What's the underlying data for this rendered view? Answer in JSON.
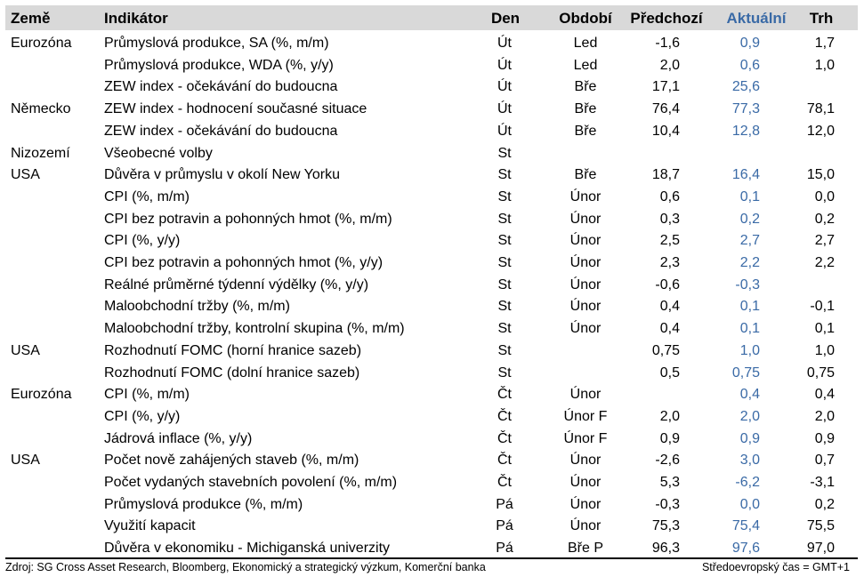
{
  "headers": {
    "country": "Země",
    "indicator": "Indikátor",
    "day": "Den",
    "period": "Období",
    "previous": "Předchozí",
    "actual": "Aktuální",
    "market": "Trh"
  },
  "colors": {
    "header_bg": "#d9d9d9",
    "actual_text": "#3a6aa6"
  },
  "rows": [
    {
      "country": "Eurozóna",
      "indicator": "Průmyslová produkce, SA (%, m/m)",
      "day": "Út",
      "period": "Led",
      "previous": "-1,6",
      "actual": "0,9",
      "market": "1,7"
    },
    {
      "country": "",
      "indicator": "Průmyslová produkce, WDA (%, y/y)",
      "day": "Út",
      "period": "Led",
      "previous": "2,0",
      "actual": "0,6",
      "market": "1,0"
    },
    {
      "country": "",
      "indicator": "ZEW index - očekávání do budoucna",
      "day": "Út",
      "period": "Bře",
      "previous": "17,1",
      "actual": "25,6",
      "market": ""
    },
    {
      "country": "Německo",
      "indicator": "ZEW index - hodnocení současné situace",
      "day": "Út",
      "period": "Bře",
      "previous": "76,4",
      "actual": "77,3",
      "market": "78,1"
    },
    {
      "country": "",
      "indicator": "ZEW index - očekávání do budoucna",
      "day": "Út",
      "period": "Bře",
      "previous": "10,4",
      "actual": "12,8",
      "market": "12,0"
    },
    {
      "country": "Nizozemí",
      "indicator": "Všeobecné volby",
      "day": "St",
      "period": "",
      "previous": "",
      "actual": "",
      "market": ""
    },
    {
      "country": "USA",
      "indicator": "Důvěra v průmyslu v okolí New Yorku",
      "day": "St",
      "period": "Bře",
      "previous": "18,7",
      "actual": "16,4",
      "market": "15,0"
    },
    {
      "country": "",
      "indicator": "CPI (%, m/m)",
      "day": "St",
      "period": "Únor",
      "previous": "0,6",
      "actual": "0,1",
      "market": "0,0"
    },
    {
      "country": "",
      "indicator": "CPI bez potravin a pohonných hmot (%, m/m)",
      "day": "St",
      "period": "Únor",
      "previous": "0,3",
      "actual": "0,2",
      "market": "0,2"
    },
    {
      "country": "",
      "indicator": "CPI (%, y/y)",
      "day": "St",
      "period": "Únor",
      "previous": "2,5",
      "actual": "2,7",
      "market": "2,7"
    },
    {
      "country": "",
      "indicator": "CPI bez potravin a pohonných hmot (%, y/y)",
      "day": "St",
      "period": "Únor",
      "previous": "2,3",
      "actual": "2,2",
      "market": "2,2"
    },
    {
      "country": "",
      "indicator": "Reálné průměrné týdenní výdělky (%, y/y)",
      "day": "St",
      "period": "Únor",
      "previous": "-0,6",
      "actual": "-0,3",
      "market": ""
    },
    {
      "country": "",
      "indicator": "Maloobchodní tržby (%, m/m)",
      "day": "St",
      "period": "Únor",
      "previous": "0,4",
      "actual": "0,1",
      "market": "-0,1"
    },
    {
      "country": "",
      "indicator": "Maloobchodní tržby, kontrolní skupina (%, m/m)",
      "day": "St",
      "period": "Únor",
      "previous": "0,4",
      "actual": "0,1",
      "market": "0,1"
    },
    {
      "country": "USA",
      "indicator": "Rozhodnutí FOMC (horní hranice sazeb)",
      "day": "St",
      "period": "",
      "previous": "0,75",
      "actual": "1,0",
      "market": "1,0"
    },
    {
      "country": "",
      "indicator": "Rozhodnutí FOMC (dolní hranice sazeb)",
      "day": "St",
      "period": "",
      "previous": "0,5",
      "actual": "0,75",
      "market": "0,75"
    },
    {
      "country": "Eurozóna",
      "indicator": "CPI (%, m/m)",
      "day": "Čt",
      "period": "Únor",
      "previous": "",
      "actual": "0,4",
      "market": "0,4"
    },
    {
      "country": "",
      "indicator": "CPI (%, y/y)",
      "day": "Čt",
      "period": "Únor F",
      "previous": "2,0",
      "actual": "2,0",
      "market": "2,0"
    },
    {
      "country": "",
      "indicator": "Jádrová inflace (%, y/y)",
      "day": "Čt",
      "period": "Únor F",
      "previous": "0,9",
      "actual": "0,9",
      "market": "0,9"
    },
    {
      "country": "USA",
      "indicator": "Počet nově zahájených staveb (%, m/m)",
      "day": "Čt",
      "period": "Únor",
      "previous": "-2,6",
      "actual": "3,0",
      "market": "0,7"
    },
    {
      "country": "",
      "indicator": "Počet vydaných stavebních povolení (%, m/m)",
      "day": "Čt",
      "period": "Únor",
      "previous": "5,3",
      "actual": "-6,2",
      "market": "-3,1"
    },
    {
      "country": "",
      "indicator": "Průmyslová produkce (%, m/m)",
      "day": "Pá",
      "period": "Únor",
      "previous": "-0,3",
      "actual": "0,0",
      "market": "0,2"
    },
    {
      "country": "",
      "indicator": "Využití kapacit",
      "day": "Pá",
      "period": "Únor",
      "previous": "75,3",
      "actual": "75,4",
      "market": "75,5"
    },
    {
      "country": "",
      "indicator": "Důvěra v ekonomiku - Michiganská univerzity",
      "day": "Pá",
      "period": "Bře P",
      "previous": "96,3",
      "actual": "97,6",
      "market": "97,0"
    }
  ],
  "footer": {
    "source": "Zdroj: SG Cross Asset Research, Bloomberg, Ekonomický a strategický výzkum, Komerční banka",
    "timezone": "Středoevropský čas = GMT+1"
  }
}
